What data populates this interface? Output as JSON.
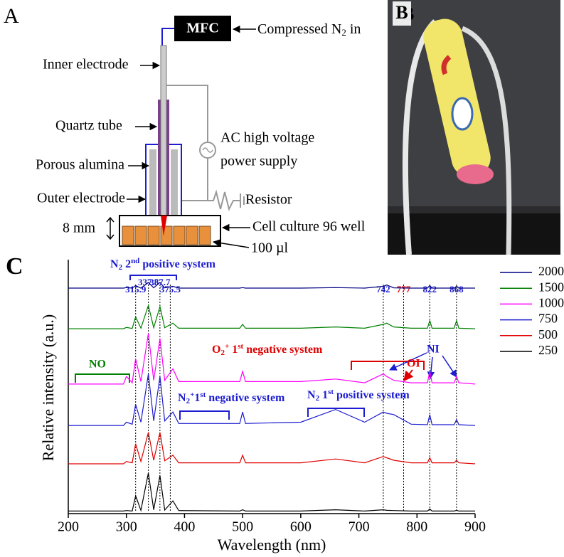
{
  "schematic": {
    "panel": "A",
    "mfc": "MFC",
    "gas": [
      "Compressed N",
      "2",
      " in"
    ],
    "inner_electrode": "Inner electrode",
    "quartz_tube": "Quartz tube",
    "power_supply": [
      "AC high voltage",
      "power supply"
    ],
    "porous_alumina": "Porous alumina",
    "outer_electrode": "Outer electrode",
    "resistor": "Resistor",
    "gap": "8 mm",
    "plate": "Cell culture 96 well",
    "volume": "100 µl"
  },
  "photo": {
    "panel": "B"
  },
  "chart_data": {
    "type": "line",
    "panel": "C",
    "xlabel": "Wavelength (nm)",
    "ylabel": "Relative intensity (a.u.)",
    "xlim": [
      200,
      900
    ],
    "xticks": [
      200,
      300,
      400,
      500,
      600,
      700,
      800,
      900
    ],
    "ylim": [
      0,
      100
    ],
    "x": [
      200,
      295,
      300,
      310,
      315.9,
      325,
      337.8,
      347,
      357.7,
      366,
      380,
      390,
      495,
      500,
      505,
      600,
      660,
      710,
      742,
      748,
      760,
      790,
      818,
      822,
      826,
      864,
      868,
      872,
      900
    ],
    "series": [
      {
        "name": "2000",
        "color": "#000080",
        "values": [
          88.8,
          88.8,
          89,
          88.8,
          89.8,
          88.8,
          91,
          88.9,
          91,
          88.9,
          89.5,
          88.8,
          88.8,
          89,
          88.8,
          88.8,
          89,
          88.8,
          89.5,
          90,
          88.9,
          88.8,
          88.8,
          89.8,
          88.8,
          88.8,
          89.5,
          88.8,
          88.8
        ]
      },
      {
        "name": "1500",
        "color": "#008000",
        "values": [
          72.8,
          72.8,
          73.3,
          72.9,
          77.5,
          73,
          82,
          73.2,
          81.5,
          73.2,
          75,
          73,
          73,
          74.5,
          73,
          73,
          73.5,
          73,
          74.5,
          75,
          73.5,
          73,
          73,
          76,
          73,
          73,
          76,
          73,
          72.8
        ]
      },
      {
        "name": "1000",
        "color": "#ff00ff",
        "values": [
          51,
          51,
          54,
          51.5,
          61,
          52,
          71,
          52.5,
          69,
          52.5,
          57,
          52,
          52,
          56,
          52,
          52,
          53,
          51.5,
          55,
          54,
          52.5,
          51.5,
          51.5,
          56,
          51.5,
          51.5,
          54,
          51.5,
          51
        ]
      },
      {
        "name": "750",
        "color": "#1c1cd0",
        "values": [
          34.7,
          34.7,
          36,
          35.2,
          43,
          36,
          55,
          36.5,
          54,
          36.5,
          40,
          35.5,
          35.5,
          40,
          35.5,
          36,
          41,
          36,
          40,
          39.5,
          39,
          35.2,
          35,
          39,
          35,
          35,
          37,
          35,
          34.7
        ]
      },
      {
        "name": "500",
        "color": "#e00000",
        "values": [
          19.6,
          19.6,
          20.5,
          20,
          27.5,
          20.5,
          32,
          21,
          32,
          20.8,
          23,
          20,
          20,
          23,
          20,
          20,
          21.5,
          20,
          22.5,
          22,
          21,
          20,
          20,
          22,
          20,
          20,
          21,
          20,
          19.6
        ]
      },
      {
        "name": "250",
        "color": "#000000",
        "values": [
          1,
          1,
          1.2,
          1,
          7,
          1.3,
          16,
          1.5,
          15,
          1.4,
          5,
          1.2,
          1,
          1.5,
          1,
          1,
          1.5,
          1,
          1.5,
          1.3,
          1.2,
          1,
          1,
          1.8,
          1,
          1,
          1.3,
          1,
          1
        ]
      }
    ],
    "peaks": [
      315.9,
      337.8,
      357.7,
      375.5,
      742,
      777,
      822,
      868
    ],
    "peak_colors": [
      "#1c1cd0",
      "#1c1cd0",
      "#1c1cd0",
      "#1c1cd0",
      "#1c1cd0",
      "#e00000",
      "#1c1cd0",
      "#1c1cd0"
    ],
    "annotations": {
      "n2_2nd": [
        "N",
        "2",
        " 2",
        "nd",
        " positive system"
      ],
      "no": "NO",
      "o2_1st_neg": [
        "O",
        "2",
        "+",
        " 1",
        "st",
        " negative system"
      ],
      "ni": "NI",
      "oi": "OI",
      "n2p_1st_neg": [
        "N",
        "2",
        "+",
        "1",
        "st",
        " negative system"
      ],
      "n2_1st_pos": [
        "N",
        "2",
        " 1",
        "st",
        " positive system"
      ]
    }
  }
}
